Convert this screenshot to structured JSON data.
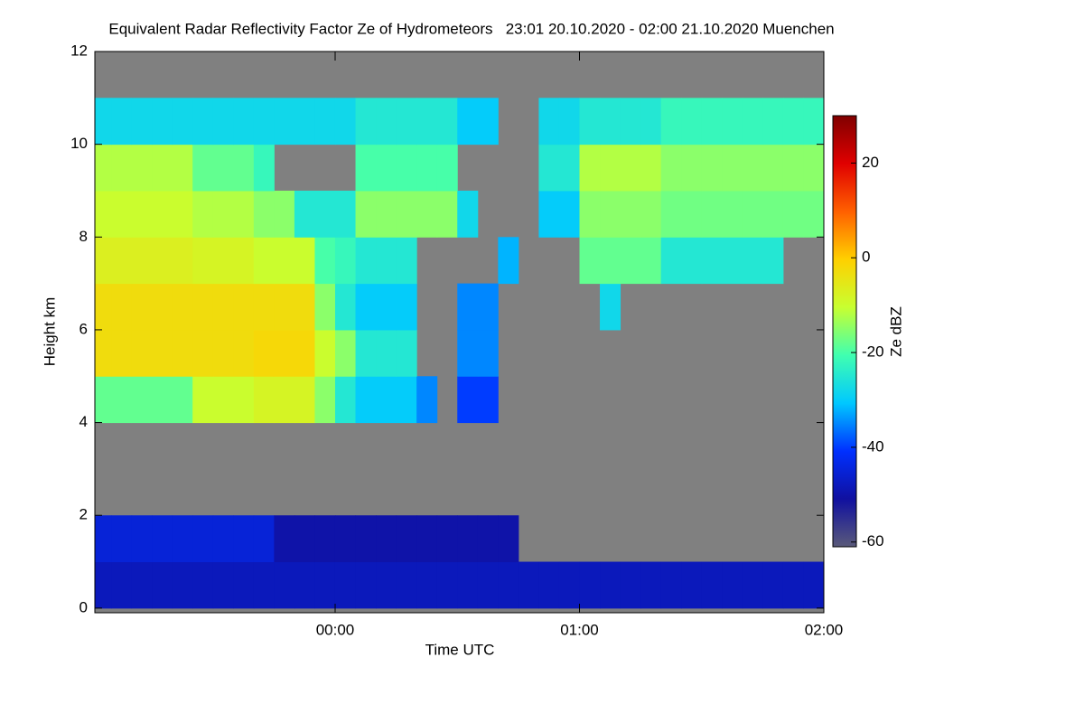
{
  "chart_data": {
    "type": "heatmap",
    "title": "Equivalent Radar Reflectivity Factor Ze of Hydrometeors   23:01 20.10.2020 - 02:00 21.10.2020 Muenchen",
    "xlabel": "Time UTC",
    "ylabel": "Height km",
    "colorbar_label": "Ze dBZ",
    "xlim": [
      -59,
      120
    ],
    "xticks": [
      {
        "value": 0,
        "label": "00:00"
      },
      {
        "value": 60,
        "label": "01:00"
      },
      {
        "value": 120,
        "label": "02:00"
      }
    ],
    "ylim": [
      -0.1,
      12
    ],
    "yticks": [
      0,
      2,
      4,
      6,
      8,
      10,
      12
    ],
    "clim": [
      -61,
      30
    ],
    "cticks": [
      -60,
      -40,
      -20,
      0,
      20
    ],
    "colorscale": [
      "#5a5a7a",
      "#1010a0",
      "#0030ff",
      "#00c8ff",
      "#40ffb0",
      "#c8ff30",
      "#ffd000",
      "#ff6000",
      "#e00000",
      "#800000"
    ],
    "background": "#808080",
    "xbins": [
      -60,
      -55,
      -50,
      -45,
      -40,
      -35,
      -30,
      -25,
      -20,
      -15,
      -10,
      -5,
      0,
      5,
      10,
      15,
      20,
      25,
      30,
      35,
      40,
      45,
      50,
      55,
      60,
      65,
      70,
      75,
      80,
      85,
      90,
      95,
      100,
      105,
      110,
      115,
      120
    ],
    "ybins": [
      0,
      1,
      2,
      3,
      4,
      5,
      6,
      7,
      8,
      9,
      10,
      11,
      12
    ],
    "values": [
      [
        -48,
        -48,
        -48,
        -48,
        -48,
        -48,
        -48,
        -48,
        -48,
        -48,
        -48,
        -48,
        -48,
        -48,
        -48,
        -48,
        -48,
        -48,
        -48,
        -48,
        -48,
        -48,
        -48,
        -48,
        -48,
        -48,
        -48,
        -48,
        -48,
        -48,
        -48,
        -48,
        -48,
        -48,
        -48,
        -48
      ],
      [
        -45,
        -45,
        -45,
        -45,
        -45,
        -45,
        -45,
        -45,
        -45,
        -50,
        -50,
        -50,
        -50,
        -50,
        -50,
        -50,
        -50,
        -50,
        -50,
        -50,
        -50,
        null,
        null,
        null,
        null,
        null,
        null,
        null,
        null,
        null,
        null,
        null,
        null,
        null,
        null,
        null
      ],
      [
        null,
        null,
        null,
        null,
        null,
        null,
        null,
        null,
        null,
        null,
        null,
        null,
        null,
        null,
        null,
        null,
        null,
        null,
        null,
        null,
        null,
        null,
        null,
        null,
        null,
        null,
        null,
        null,
        null,
        null,
        null,
        null,
        null,
        null,
        null,
        null
      ],
      [
        null,
        null,
        null,
        null,
        null,
        null,
        null,
        null,
        null,
        null,
        null,
        null,
        null,
        null,
        null,
        null,
        null,
        null,
        null,
        null,
        null,
        null,
        null,
        null,
        null,
        null,
        null,
        null,
        null,
        null,
        null,
        null,
        null,
        null,
        null,
        null
      ],
      [
        -18,
        -18,
        -18,
        -18,
        -18,
        -10,
        -10,
        -10,
        -8,
        -8,
        -8,
        -15,
        -25,
        -30,
        -30,
        -30,
        -35,
        null,
        -40,
        -40,
        null,
        null,
        null,
        null,
        null,
        null,
        null,
        null,
        null,
        null,
        null,
        null,
        null,
        null,
        null,
        null
      ],
      [
        -3,
        -3,
        -3,
        -3,
        -3,
        -3,
        -3,
        -3,
        -2,
        -2,
        -2,
        -10,
        -15,
        -25,
        -25,
        -25,
        null,
        null,
        -35,
        -35,
        null,
        null,
        null,
        null,
        null,
        null,
        null,
        null,
        null,
        null,
        null,
        null,
        null,
        null,
        null,
        null
      ],
      [
        -3,
        -3,
        -3,
        -3,
        -3,
        -3,
        -3,
        -3,
        -3,
        -3,
        -3,
        -15,
        -25,
        -30,
        -30,
        -30,
        null,
        null,
        -35,
        -35,
        null,
        null,
        null,
        null,
        null,
        -28,
        null,
        null,
        null,
        null,
        null,
        null,
        null,
        null,
        null,
        null
      ],
      [
        -7,
        -7,
        -7,
        -7,
        -7,
        -8,
        -8,
        -8,
        -10,
        -10,
        -10,
        -20,
        -22,
        -25,
        -25,
        -25,
        null,
        null,
        null,
        null,
        -32,
        null,
        null,
        null,
        -18,
        -18,
        -18,
        -18,
        -25,
        -25,
        -25,
        -25,
        -25,
        -25,
        null,
        null
      ],
      [
        -10,
        -10,
        -10,
        -10,
        -10,
        -12,
        -12,
        -12,
        -15,
        -15,
        -25,
        -25,
        -25,
        -15,
        -15,
        -15,
        -15,
        -15,
        -28,
        null,
        null,
        null,
        -30,
        -30,
        -15,
        -15,
        -15,
        -15,
        -17,
        -17,
        -17,
        -17,
        -17,
        -17,
        -17,
        -17
      ],
      [
        -12,
        -12,
        -12,
        -12,
        -12,
        -18,
        -18,
        -18,
        -22,
        null,
        null,
        null,
        null,
        -20,
        -20,
        -20,
        -20,
        -20,
        null,
        null,
        null,
        null,
        -25,
        -25,
        -12,
        -12,
        -12,
        -12,
        -15,
        -15,
        -15,
        -15,
        -15,
        -15,
        -15,
        -15
      ],
      [
        -28,
        -28,
        -28,
        -28,
        -28,
        -28,
        -28,
        -28,
        -28,
        -28,
        -28,
        -28,
        -28,
        -25,
        -25,
        -25,
        -25,
        -25,
        -30,
        -30,
        null,
        null,
        -28,
        -28,
        -25,
        -25,
        -25,
        -25,
        -22,
        -22,
        -22,
        -22,
        -22,
        -22,
        -22,
        -22
      ],
      [
        null,
        null,
        null,
        null,
        null,
        null,
        null,
        null,
        null,
        null,
        null,
        null,
        null,
        null,
        null,
        null,
        null,
        null,
        null,
        null,
        null,
        null,
        null,
        null,
        null,
        null,
        null,
        null,
        null,
        null,
        null,
        null,
        null,
        null,
        null,
        null
      ]
    ]
  }
}
